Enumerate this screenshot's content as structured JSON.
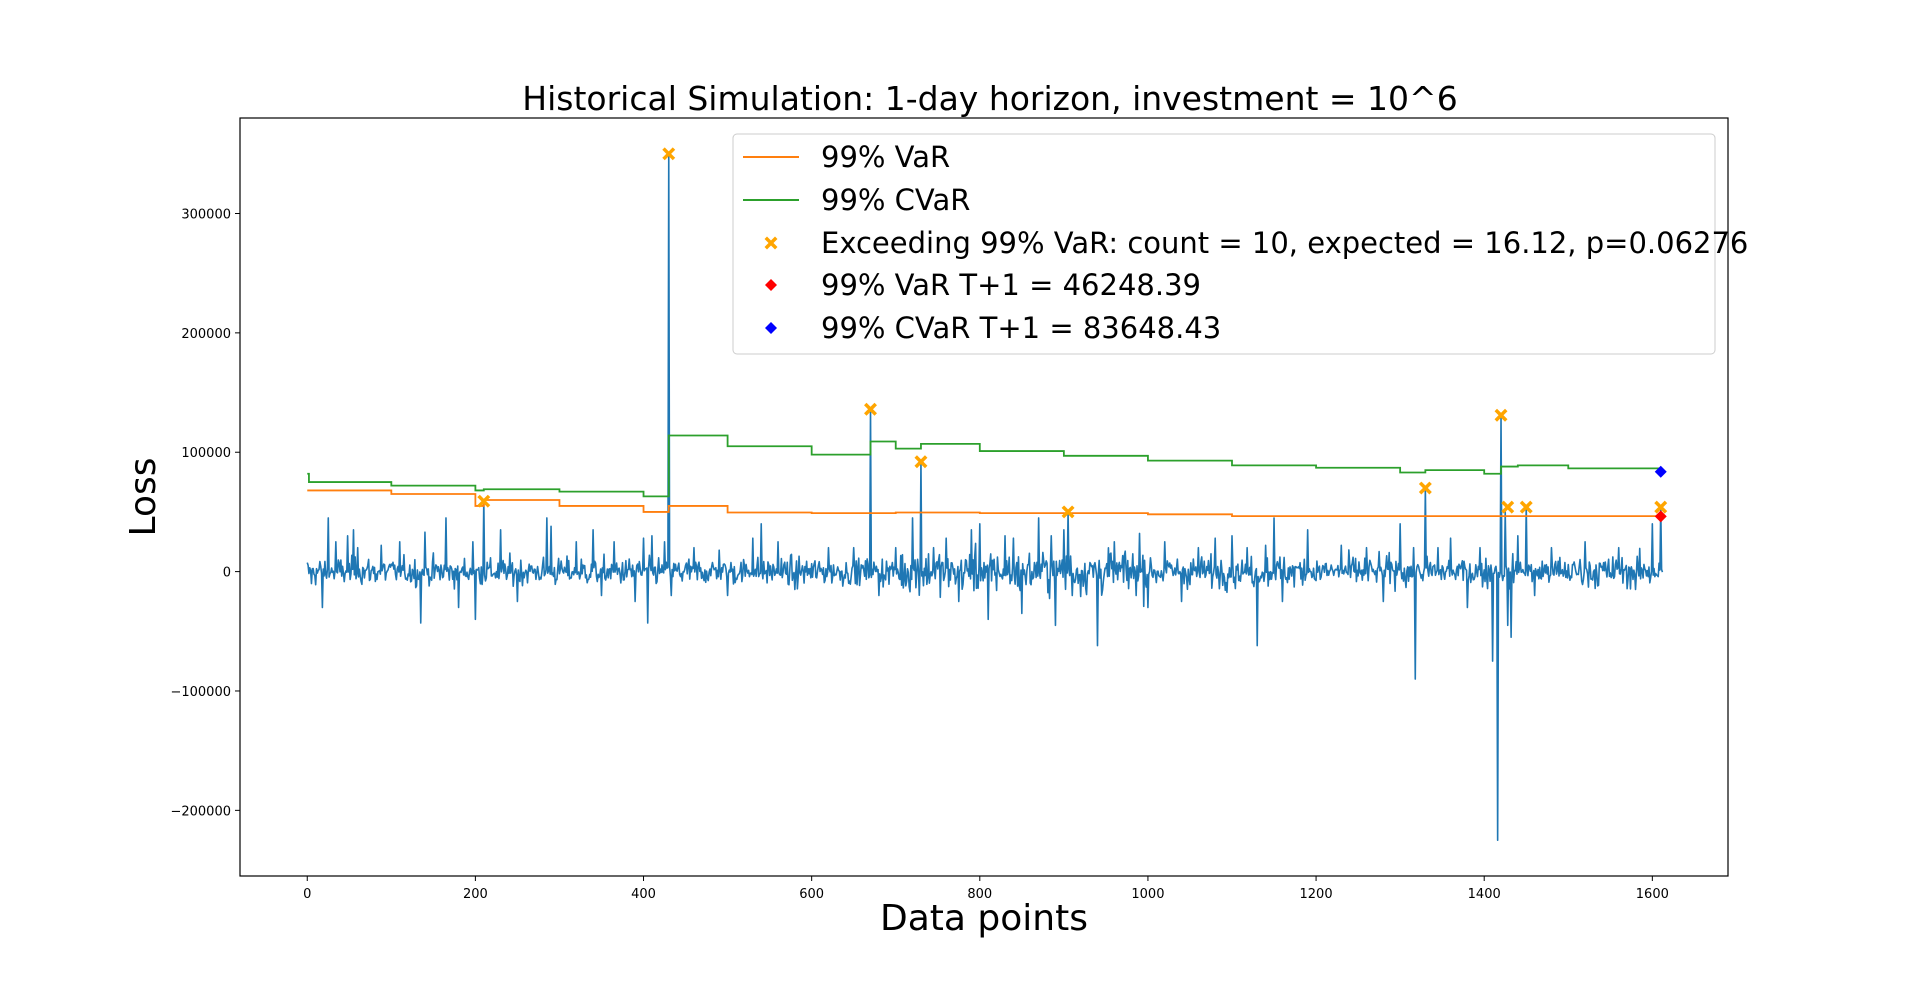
{
  "chart_data": {
    "type": "line",
    "title": "Historical Simulation: 1-day horizon, investment = 10^6",
    "xlabel": "Data points",
    "ylabel": "Loss",
    "xlim": [
      -80,
      1690
    ],
    "ylim": [
      -255000,
      380000
    ],
    "xticks": [
      0,
      200,
      400,
      600,
      800,
      1000,
      1200,
      1400,
      1600
    ],
    "yticks": [
      -200000,
      -100000,
      0,
      100000,
      200000,
      300000
    ],
    "ytick_labels": [
      "−200000",
      "−100000",
      "0",
      "100000",
      "200000",
      "300000"
    ],
    "colors": {
      "loss": "#1f77b4",
      "var": "#ff7f0e",
      "cvar": "#2ca02c",
      "exceed": "#ffa500",
      "var_next": "#ff0000",
      "cvar_next": "#0000ff"
    },
    "legend_position": "upper right",
    "legend": [
      {
        "label": "99% VaR",
        "kind": "line",
        "color": "#ff7f0e"
      },
      {
        "label": "99% CVaR",
        "kind": "line",
        "color": "#2ca02c"
      },
      {
        "label": "Exceeding 99% VaR: count = 10, expected = 16.12, p=0.06276",
        "kind": "xmarker",
        "color": "#ffa500"
      },
      {
        "label": "99% VaR T+1 = 46248.39",
        "kind": "diamond",
        "color": "#ff0000"
      },
      {
        "label": "99% CVaR T+1 = 83648.43",
        "kind": "diamond",
        "color": "#0000ff"
      }
    ],
    "series": [
      {
        "name": "99% VaR",
        "steps": [
          [
            0,
            68000
          ],
          [
            100,
            65000
          ],
          [
            200,
            55000
          ],
          [
            210,
            60000
          ],
          [
            300,
            55000
          ],
          [
            400,
            50000
          ],
          [
            430,
            55000
          ],
          [
            500,
            49500
          ],
          [
            600,
            49000
          ],
          [
            700,
            49500
          ],
          [
            800,
            49000
          ],
          [
            1000,
            48000
          ],
          [
            1100,
            46500
          ],
          [
            1500,
            46500
          ]
        ]
      },
      {
        "name": "99% CVaR",
        "steps": [
          [
            0,
            82000
          ],
          [
            2,
            75000
          ],
          [
            100,
            72000
          ],
          [
            200,
            68000
          ],
          [
            210,
            69000
          ],
          [
            300,
            67000
          ],
          [
            400,
            63000
          ],
          [
            430,
            114000
          ],
          [
            500,
            105000
          ],
          [
            600,
            98000
          ],
          [
            670,
            109000
          ],
          [
            700,
            103000
          ],
          [
            730,
            107000
          ],
          [
            800,
            101000
          ],
          [
            900,
            97000
          ],
          [
            1000,
            93000
          ],
          [
            1100,
            89000
          ],
          [
            1200,
            87000
          ],
          [
            1300,
            83000
          ],
          [
            1330,
            85000
          ],
          [
            1400,
            82000
          ],
          [
            1420,
            88000
          ],
          [
            1440,
            89000
          ],
          [
            1500,
            86500
          ]
        ]
      }
    ],
    "step_end_x": 1612,
    "loss_spikes": [
      [
        5,
        -10000
      ],
      [
        18,
        -30000
      ],
      [
        25,
        45000
      ],
      [
        34,
        25000
      ],
      [
        48,
        30000
      ],
      [
        55,
        35000
      ],
      [
        60,
        20000
      ],
      [
        88,
        22000
      ],
      [
        110,
        25000
      ],
      [
        135,
        -43000
      ],
      [
        140,
        33000
      ],
      [
        165,
        45000
      ],
      [
        180,
        -30000
      ],
      [
        197,
        25000
      ],
      [
        200,
        -40000
      ],
      [
        210,
        60000
      ],
      [
        230,
        35000
      ],
      [
        250,
        -25000
      ],
      [
        285,
        45000
      ],
      [
        290,
        38000
      ],
      [
        320,
        25000
      ],
      [
        340,
        35000
      ],
      [
        350,
        -20000
      ],
      [
        365,
        25000
      ],
      [
        390,
        -25000
      ],
      [
        400,
        28000
      ],
      [
        405,
        -43000
      ],
      [
        410,
        30000
      ],
      [
        425,
        25000
      ],
      [
        430,
        350000
      ],
      [
        433,
        -20000
      ],
      [
        460,
        20000
      ],
      [
        490,
        18000
      ],
      [
        500,
        -20000
      ],
      [
        530,
        28000
      ],
      [
        540,
        40000
      ],
      [
        560,
        25000
      ],
      [
        580,
        -15000
      ],
      [
        620,
        20000
      ],
      [
        650,
        20000
      ],
      [
        670,
        136000
      ],
      [
        680,
        -20000
      ],
      [
        700,
        20000
      ],
      [
        720,
        45000
      ],
      [
        730,
        92000
      ],
      [
        745,
        20000
      ],
      [
        760,
        28000
      ],
      [
        775,
        -25000
      ],
      [
        790,
        35000
      ],
      [
        800,
        40000
      ],
      [
        810,
        -40000
      ],
      [
        830,
        30000
      ],
      [
        840,
        28000
      ],
      [
        850,
        -35000
      ],
      [
        870,
        45000
      ],
      [
        885,
        30000
      ],
      [
        890,
        -45000
      ],
      [
        900,
        35000
      ],
      [
        905,
        50000
      ],
      [
        910,
        -20000
      ],
      [
        940,
        -62000
      ],
      [
        960,
        25000
      ],
      [
        990,
        32000
      ],
      [
        1000,
        -30000
      ],
      [
        1020,
        25000
      ],
      [
        1040,
        -25000
      ],
      [
        1060,
        20000
      ],
      [
        1080,
        28000
      ],
      [
        1100,
        30000
      ],
      [
        1118,
        20000
      ],
      [
        1130,
        -62000
      ],
      [
        1140,
        22000
      ],
      [
        1150,
        45000
      ],
      [
        1160,
        -25000
      ],
      [
        1190,
        35000
      ],
      [
        1230,
        22000
      ],
      [
        1260,
        20000
      ],
      [
        1280,
        -25000
      ],
      [
        1300,
        40000
      ],
      [
        1318,
        -90000
      ],
      [
        1330,
        70000
      ],
      [
        1345,
        20000
      ],
      [
        1360,
        28000
      ],
      [
        1380,
        -30000
      ],
      [
        1395,
        20000
      ],
      [
        1410,
        -75000
      ],
      [
        1416,
        -225000
      ],
      [
        1420,
        130000
      ],
      [
        1425,
        50000
      ],
      [
        1428,
        -45000
      ],
      [
        1432,
        -55000
      ],
      [
        1440,
        30000
      ],
      [
        1450,
        55000
      ],
      [
        1460,
        -20000
      ],
      [
        1480,
        20000
      ],
      [
        1520,
        25000
      ],
      [
        1560,
        20000
      ],
      [
        1580,
        -15000
      ],
      [
        1600,
        40000
      ],
      [
        1610,
        55000
      ]
    ],
    "exceedances": [
      [
        210,
        59000
      ],
      [
        430,
        350000
      ],
      [
        670,
        136000
      ],
      [
        730,
        92000
      ],
      [
        905,
        50000
      ],
      [
        1330,
        70000
      ],
      [
        1420,
        131000
      ],
      [
        1428,
        54000
      ],
      [
        1450,
        54000
      ],
      [
        1610,
        54000
      ]
    ],
    "var_next": [
      1610,
      46248.39
    ],
    "cvar_next": [
      1610,
      83648.43
    ]
  }
}
